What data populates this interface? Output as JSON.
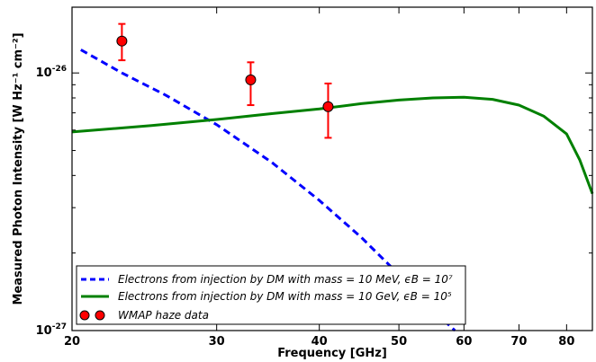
{
  "chart_data": {
    "type": "line",
    "xscale": "log",
    "yscale": "log",
    "xlim": [
      20,
      86
    ],
    "ylim": [
      1e-27,
      1.8e-26
    ],
    "xlabel": "Frequency [GHz]",
    "ylabel": "Measured Photon Intensity [W Hz⁻¹ cm⁻²]",
    "x_ticks": [
      {
        "value": 20,
        "label": "20"
      },
      {
        "value": 30,
        "label": "30"
      },
      {
        "value": 40,
        "label": "40"
      },
      {
        "value": 50,
        "label": "50"
      },
      {
        "value": 60,
        "label": "60"
      },
      {
        "value": 70,
        "label": "70"
      },
      {
        "value": 80,
        "label": "80"
      }
    ],
    "y_major_ticks": [
      {
        "value": 1e-27,
        "mantissa": "10",
        "exponent": "-27"
      },
      {
        "value": 1e-26,
        "mantissa": "10",
        "exponent": "-26"
      }
    ],
    "grid": false,
    "legend_position": "lower-left",
    "series": [
      {
        "name": "Electrons from injection by DM with mass = 10 MeV, ϵB = 10⁷",
        "color": "#0000ff",
        "style": "dashed",
        "x": [
          20.5,
          23,
          26,
          30,
          35,
          40,
          45,
          50,
          55,
          58.5
        ],
        "y": [
          1.23e-26,
          1e-26,
          8.2e-27,
          6.3e-27,
          4.5e-27,
          3.2e-27,
          2.3e-27,
          1.65e-27,
          1.2e-27,
          1e-27
        ]
      },
      {
        "name": "Electrons from injection by DM with mass = 10 GeV, ϵB = 10⁵",
        "color": "#008000",
        "style": "solid",
        "x": [
          20,
          25,
          30,
          35,
          40,
          45,
          50,
          55,
          60,
          65,
          70,
          75,
          80,
          83,
          86
        ],
        "y": [
          5.9e-27,
          6.25e-27,
          6.6e-27,
          6.95e-27,
          7.25e-27,
          7.6e-27,
          7.85e-27,
          8e-27,
          8.05e-27,
          7.9e-27,
          7.5e-27,
          6.8e-27,
          5.8e-27,
          4.6e-27,
          3.4e-27
        ]
      }
    ],
    "errorbar_series": {
      "name": "WMAP haze data",
      "color": "#ff0000",
      "marker": "circle",
      "x": [
        23,
        33,
        41
      ],
      "y": [
        1.33e-26,
        9.4e-27,
        7.4e-27
      ],
      "y_low": [
        1.12e-26,
        7.5e-27,
        5.6e-27
      ],
      "y_high": [
        1.55e-26,
        1.1e-26,
        9.1e-27
      ]
    }
  }
}
